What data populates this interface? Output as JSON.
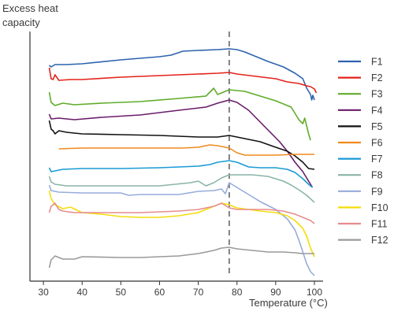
{
  "chart_data": {
    "type": "line",
    "title": "",
    "ylabel": "Excess heat\ncapacity",
    "xlabel": "Temperature (°C)",
    "xlim": [
      26,
      101
    ],
    "xticks": [
      30,
      40,
      50,
      60,
      70,
      80,
      90,
      100
    ],
    "vline": 78,
    "legend_position": "right",
    "series": [
      {
        "name": "F1",
        "color": "#2d62ae",
        "points": [
          [
            31.5,
            83
          ],
          [
            32,
            85
          ],
          [
            33,
            82
          ],
          [
            36,
            82
          ],
          [
            40,
            81
          ],
          [
            50,
            76
          ],
          [
            60,
            72
          ],
          [
            63,
            70
          ],
          [
            66,
            65
          ],
          [
            70,
            64
          ],
          [
            75,
            63
          ],
          [
            78,
            62
          ],
          [
            80,
            63
          ],
          [
            82,
            66
          ],
          [
            85,
            72
          ],
          [
            88,
            78
          ],
          [
            92,
            85
          ],
          [
            95,
            93
          ],
          [
            97,
            100
          ],
          [
            98,
            112
          ],
          [
            99,
            120
          ],
          [
            99.3,
            127
          ],
          [
            99.6,
            121
          ],
          [
            100,
            127
          ]
        ]
      },
      {
        "name": "F2",
        "color": "#e2231a",
        "points": [
          [
            31.5,
            86
          ],
          [
            32,
            100
          ],
          [
            32.5,
            101
          ],
          [
            33,
            95
          ],
          [
            34,
            102
          ],
          [
            37,
            101
          ],
          [
            40,
            101
          ],
          [
            50,
            98
          ],
          [
            60,
            96
          ],
          [
            70,
            94
          ],
          [
            75,
            93
          ],
          [
            78,
            92
          ],
          [
            80,
            94
          ],
          [
            85,
            97
          ],
          [
            90,
            100
          ],
          [
            93,
            104
          ],
          [
            96,
            106
          ],
          [
            98,
            109
          ],
          [
            99,
            110
          ],
          [
            100,
            113
          ],
          [
            100.5,
            118
          ]
        ]
      },
      {
        "name": "F3",
        "color": "#5fac2a",
        "points": [
          [
            31.5,
            117
          ],
          [
            32,
            130
          ],
          [
            33,
            134
          ],
          [
            35,
            131
          ],
          [
            38,
            133
          ],
          [
            45,
            131
          ],
          [
            55,
            129
          ],
          [
            65,
            125
          ],
          [
            72,
            122
          ],
          [
            74,
            112
          ],
          [
            75,
            120
          ],
          [
            76,
            118
          ],
          [
            78,
            114
          ],
          [
            82,
            116
          ],
          [
            86,
            122
          ],
          [
            90,
            128
          ],
          [
            94,
            136
          ],
          [
            96,
            152
          ],
          [
            97,
            157
          ],
          [
            97.5,
            150
          ],
          [
            98,
            160
          ],
          [
            98.5,
            170
          ],
          [
            99,
            178
          ]
        ]
      },
      {
        "name": "F4",
        "color": "#6a1b6a",
        "points": [
          [
            31.5,
            145
          ],
          [
            32,
            151
          ],
          [
            34,
            150
          ],
          [
            38,
            152
          ],
          [
            45,
            149
          ],
          [
            55,
            146
          ],
          [
            65,
            140
          ],
          [
            72,
            136
          ],
          [
            75,
            131
          ],
          [
            78,
            127
          ],
          [
            80,
            130
          ],
          [
            83,
            140
          ],
          [
            86,
            155
          ],
          [
            89,
            170
          ],
          [
            91,
            180
          ],
          [
            93,
            192
          ],
          [
            95,
            206
          ],
          [
            97,
            218
          ],
          [
            98.5,
            230
          ],
          [
            99.5,
            238
          ]
        ]
      },
      {
        "name": "F5",
        "color": "#111111",
        "points": [
          [
            31.5,
            153
          ],
          [
            32,
            164
          ],
          [
            32.5,
            166
          ],
          [
            33,
            170
          ],
          [
            34,
            166
          ],
          [
            36,
            168
          ],
          [
            40,
            170
          ],
          [
            50,
            171
          ],
          [
            60,
            172
          ],
          [
            70,
            174
          ],
          [
            75,
            174
          ],
          [
            78,
            172
          ],
          [
            80,
            174
          ],
          [
            83,
            177
          ],
          [
            86,
            180
          ],
          [
            90,
            187
          ],
          [
            93,
            192
          ],
          [
            95,
            198
          ],
          [
            97,
            206
          ],
          [
            98.5,
            214
          ],
          [
            100,
            215
          ]
        ]
      },
      {
        "name": "F6",
        "color": "#f08a1c",
        "points": [
          [
            34,
            189
          ],
          [
            40,
            188
          ],
          [
            50,
            188
          ],
          [
            60,
            188
          ],
          [
            66,
            188
          ],
          [
            70,
            187
          ],
          [
            73,
            184
          ],
          [
            75,
            185
          ],
          [
            78,
            188
          ],
          [
            80,
            194
          ],
          [
            82,
            197
          ],
          [
            85,
            197
          ],
          [
            90,
            197
          ],
          [
            95,
            196
          ],
          [
            100,
            196
          ]
        ]
      },
      {
        "name": "F7",
        "color": "#1a9ad6",
        "points": [
          [
            31.5,
            213
          ],
          [
            32,
            218
          ],
          [
            33,
            217
          ],
          [
            35,
            215
          ],
          [
            40,
            214
          ],
          [
            50,
            214
          ],
          [
            60,
            213
          ],
          [
            70,
            211
          ],
          [
            73,
            209
          ],
          [
            75,
            206
          ],
          [
            78,
            204
          ],
          [
            80,
            206
          ],
          [
            83,
            212
          ],
          [
            86,
            213
          ],
          [
            90,
            213
          ],
          [
            93,
            215
          ],
          [
            95,
            219
          ],
          [
            97,
            227
          ],
          [
            98.5,
            234
          ],
          [
            99.5,
            238
          ]
        ]
      },
      {
        "name": "F8",
        "color": "#8ab4a8",
        "points": [
          [
            31.5,
            224
          ],
          [
            32,
            231
          ],
          [
            33,
            234
          ],
          [
            36,
            236
          ],
          [
            40,
            236
          ],
          [
            50,
            236
          ],
          [
            60,
            236
          ],
          [
            68,
            232
          ],
          [
            70,
            230
          ],
          [
            72,
            236
          ],
          [
            74,
            232
          ],
          [
            76,
            226
          ],
          [
            78,
            222
          ],
          [
            80,
            222
          ],
          [
            84,
            222
          ],
          [
            88,
            224
          ],
          [
            90,
            227
          ],
          [
            92,
            230
          ],
          [
            94,
            235
          ],
          [
            96,
            241
          ],
          [
            98,
            248
          ],
          [
            100,
            257
          ]
        ]
      },
      {
        "name": "F9",
        "color": "#96acdc",
        "points": [
          [
            31.5,
            235
          ],
          [
            32,
            242
          ],
          [
            34,
            244
          ],
          [
            40,
            245
          ],
          [
            50,
            245
          ],
          [
            52,
            248
          ],
          [
            55,
            247
          ],
          [
            65,
            247
          ],
          [
            70,
            243
          ],
          [
            74,
            242
          ],
          [
            76,
            240
          ],
          [
            77,
            246
          ],
          [
            78,
            232
          ],
          [
            80,
            238
          ],
          [
            83,
            247
          ],
          [
            86,
            256
          ],
          [
            90,
            266
          ],
          [
            93,
            278
          ],
          [
            95,
            292
          ],
          [
            96,
            305
          ],
          [
            97,
            320
          ],
          [
            98,
            335
          ],
          [
            99,
            345
          ],
          [
            100,
            350
          ]
        ]
      },
      {
        "name": "F10",
        "color": "#f5dd0a",
        "points": [
          [
            31.5,
            242
          ],
          [
            32,
            252
          ],
          [
            33,
            260
          ],
          [
            35,
            265
          ],
          [
            37,
            263
          ],
          [
            40,
            270
          ],
          [
            45,
            272
          ],
          [
            50,
            275
          ],
          [
            55,
            276
          ],
          [
            60,
            276
          ],
          [
            65,
            274
          ],
          [
            70,
            270
          ],
          [
            74,
            262
          ],
          [
            76,
            258
          ],
          [
            78,
            260
          ],
          [
            80,
            264
          ],
          [
            83,
            266
          ],
          [
            86,
            268
          ],
          [
            90,
            270
          ],
          [
            93,
            274
          ],
          [
            95,
            280
          ],
          [
            97,
            290
          ],
          [
            98,
            300
          ],
          [
            99,
            315
          ],
          [
            100,
            326
          ]
        ]
      },
      {
        "name": "F11",
        "color": "#e78c8c",
        "points": [
          [
            31.5,
            270
          ],
          [
            32,
            262
          ],
          [
            33,
            258
          ],
          [
            34,
            266
          ],
          [
            35,
            268
          ],
          [
            38,
            270
          ],
          [
            45,
            270
          ],
          [
            55,
            270
          ],
          [
            65,
            268
          ],
          [
            70,
            266
          ],
          [
            74,
            262
          ],
          [
            76,
            258
          ],
          [
            78,
            264
          ],
          [
            80,
            266
          ],
          [
            84,
            266
          ],
          [
            88,
            266
          ],
          [
            92,
            268
          ],
          [
            95,
            272
          ],
          [
            97,
            276
          ],
          [
            99,
            280
          ],
          [
            100,
            284
          ]
        ]
      },
      {
        "name": "F12",
        "color": "#9a9a9a",
        "points": [
          [
            31.5,
            340
          ],
          [
            32,
            330
          ],
          [
            33,
            325
          ],
          [
            35,
            329
          ],
          [
            38,
            329
          ],
          [
            40,
            326
          ],
          [
            50,
            327
          ],
          [
            55,
            327
          ],
          [
            60,
            326
          ],
          [
            65,
            325
          ],
          [
            70,
            322
          ],
          [
            74,
            318
          ],
          [
            76,
            315
          ],
          [
            78,
            314
          ],
          [
            80,
            316
          ],
          [
            84,
            318
          ],
          [
            88,
            320
          ],
          [
            92,
            320
          ],
          [
            95,
            321
          ],
          [
            97,
            322
          ],
          [
            99,
            322
          ],
          [
            100,
            322
          ]
        ]
      }
    ]
  }
}
